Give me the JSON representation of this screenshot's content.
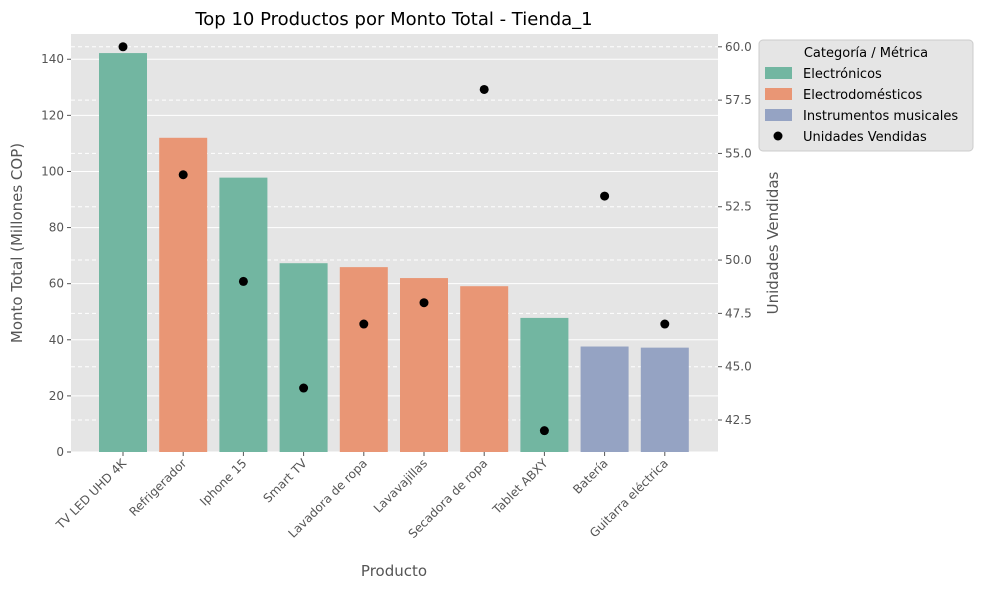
{
  "chart_data": {
    "type": "bar",
    "title": "Top 10 Productos por Monto Total - Tienda_1",
    "xlabel": "Producto",
    "ylabel": "Monto Total (Millones COP)",
    "y2label": "Unidades Vendidas",
    "ylim": [
      0,
      149
    ],
    "y2lim": [
      41.0,
      60.6
    ],
    "yticks": [
      0,
      20,
      40,
      60,
      80,
      100,
      120,
      140
    ],
    "y2ticks": [
      "42.5",
      "45.0",
      "47.5",
      "50.0",
      "52.5",
      "55.0",
      "57.5",
      "60.0"
    ],
    "grid": true,
    "legend_position": "outside-top-right",
    "categories": [
      "TV LED UHD 4K",
      "Refrigerador",
      "Iphone 15",
      "Smart TV",
      "Lavadora de ropa",
      "Lavavajillas",
      "Secadora de ropa",
      "Tablet ABXY",
      "Batería",
      "Guitarra eléctrica"
    ],
    "values": [
      142.2,
      112.0,
      97.8,
      67.3,
      65.9,
      62.0,
      59.1,
      47.8,
      37.6,
      37.2
    ],
    "bar_categories": [
      "Electrónicos",
      "Electrodomésticos",
      "Electrónicos",
      "Electrónicos",
      "Electrodomésticos",
      "Electrodomésticos",
      "Electrodomésticos",
      "Electrónicos",
      "Instrumentos musicales",
      "Instrumentos musicales"
    ],
    "units": [
      60,
      54,
      49,
      44,
      47,
      48,
      58,
      42,
      53,
      47
    ],
    "legend": {
      "title": "Categoría / Métrica",
      "entries": [
        {
          "label": "Electrónicos",
          "kind": "bar",
          "color": "#72b6a1"
        },
        {
          "label": "Electrodomésticos",
          "kind": "bar",
          "color": "#e99675"
        },
        {
          "label": "Instrumentos musicales",
          "kind": "bar",
          "color": "#95a3c3"
        },
        {
          "label": "Unidades Vendidas",
          "kind": "point",
          "color": "#000000"
        }
      ]
    },
    "colors": {
      "Electrónicos": "#72b6a1",
      "Electrodomésticos": "#e99675",
      "Instrumentos musicales": "#95a3c3",
      "points": "#000000",
      "plot_background": "#e5e5e5",
      "grid": "#ffffff"
    }
  }
}
